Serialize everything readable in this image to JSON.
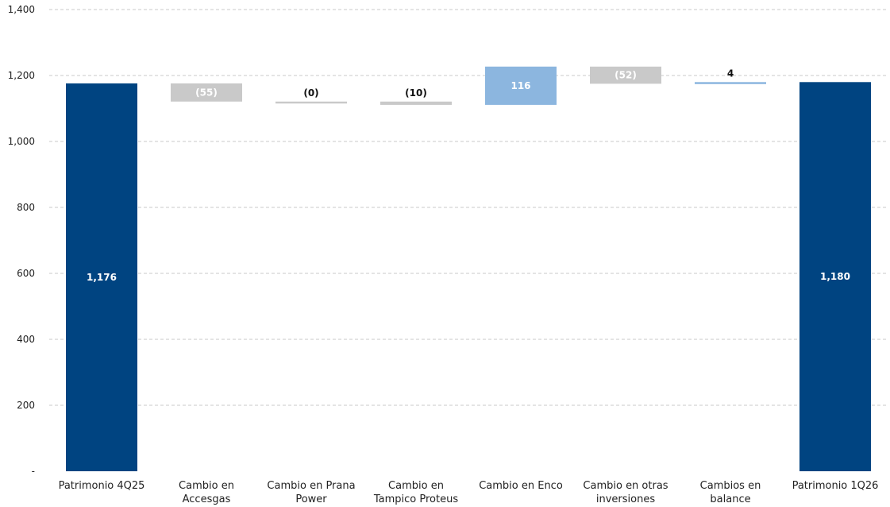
{
  "chart_data": {
    "type": "bar",
    "subtype": "waterfall",
    "title": "",
    "xlabel": "",
    "ylabel": "",
    "ylim": [
      0,
      1400
    ],
    "yticks": [
      {
        "value": 0,
        "label": "-"
      },
      {
        "value": 200,
        "label": "200"
      },
      {
        "value": 400,
        "label": "400"
      },
      {
        "value": 600,
        "label": "600"
      },
      {
        "value": 800,
        "label": "800"
      },
      {
        "value": 1000,
        "label": "1,000"
      },
      {
        "value": 1200,
        "label": "1,200"
      },
      {
        "value": 1400,
        "label": "1,400"
      }
    ],
    "grid": true,
    "legend": "none",
    "colors": {
      "total": "#004481",
      "decrease": "#c9c9c9",
      "increase": "#8cb6df",
      "label_on_dark": "#ffffff",
      "label_dark": "#111111"
    },
    "bars": [
      {
        "category": [
          "Patrimonio 4Q25"
        ],
        "kind": "total",
        "start": 0,
        "end": 1176,
        "label": "1,176"
      },
      {
        "category": [
          "Cambio en",
          "Accesgas"
        ],
        "kind": "decrease",
        "start": 1176,
        "end": 1121,
        "label": "(55)"
      },
      {
        "category": [
          "Cambio en Prana",
          "Power"
        ],
        "kind": "decrease",
        "start": 1121,
        "end": 1121,
        "label": "(0)"
      },
      {
        "category": [
          "Cambio en",
          "Tampico Proteus"
        ],
        "kind": "decrease",
        "start": 1121,
        "end": 1111,
        "label": "(10)"
      },
      {
        "category": [
          "Cambio en Enco"
        ],
        "kind": "increase",
        "start": 1111,
        "end": 1227,
        "label": "116"
      },
      {
        "category": [
          "Cambio en otras",
          "inversiones"
        ],
        "kind": "decrease",
        "start": 1227,
        "end": 1175,
        "label": "(52)"
      },
      {
        "category": [
          "Cambios en",
          "balance"
        ],
        "kind": "increase",
        "start": 1175,
        "end": 1180,
        "label": "4"
      },
      {
        "category": [
          "Patrimonio 1Q26"
        ],
        "kind": "total",
        "start": 0,
        "end": 1180,
        "label": "1,180"
      }
    ]
  }
}
